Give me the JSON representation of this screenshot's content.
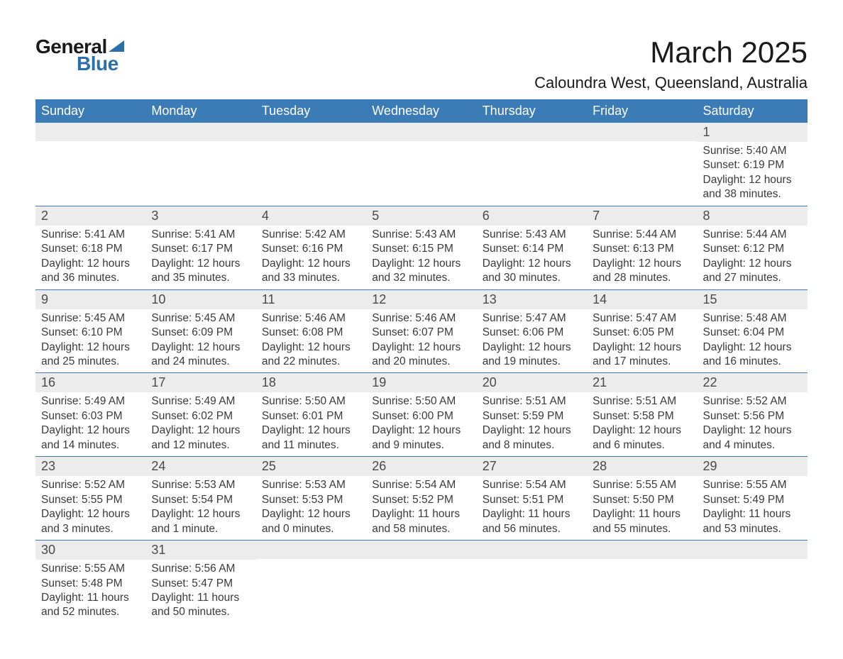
{
  "logo": {
    "general": "General",
    "blue": "Blue"
  },
  "title": "March 2025",
  "location": "Caloundra West, Queensland, Australia",
  "colors": {
    "header_bg": "#3c7cb6",
    "header_text": "#ffffff",
    "daynum_bg": "#ececec",
    "text": "#3a3a3a",
    "logo_blue": "#2a6faa"
  },
  "day_headers": [
    "Sunday",
    "Monday",
    "Tuesday",
    "Wednesday",
    "Thursday",
    "Friday",
    "Saturday"
  ],
  "weeks": [
    [
      {
        "num": "",
        "sunrise": "",
        "sunset": "",
        "daylight": ""
      },
      {
        "num": "",
        "sunrise": "",
        "sunset": "",
        "daylight": ""
      },
      {
        "num": "",
        "sunrise": "",
        "sunset": "",
        "daylight": ""
      },
      {
        "num": "",
        "sunrise": "",
        "sunset": "",
        "daylight": ""
      },
      {
        "num": "",
        "sunrise": "",
        "sunset": "",
        "daylight": ""
      },
      {
        "num": "",
        "sunrise": "",
        "sunset": "",
        "daylight": ""
      },
      {
        "num": "1",
        "sunrise": "Sunrise: 5:40 AM",
        "sunset": "Sunset: 6:19 PM",
        "daylight": "Daylight: 12 hours and 38 minutes."
      }
    ],
    [
      {
        "num": "2",
        "sunrise": "Sunrise: 5:41 AM",
        "sunset": "Sunset: 6:18 PM",
        "daylight": "Daylight: 12 hours and 36 minutes."
      },
      {
        "num": "3",
        "sunrise": "Sunrise: 5:41 AM",
        "sunset": "Sunset: 6:17 PM",
        "daylight": "Daylight: 12 hours and 35 minutes."
      },
      {
        "num": "4",
        "sunrise": "Sunrise: 5:42 AM",
        "sunset": "Sunset: 6:16 PM",
        "daylight": "Daylight: 12 hours and 33 minutes."
      },
      {
        "num": "5",
        "sunrise": "Sunrise: 5:43 AM",
        "sunset": "Sunset: 6:15 PM",
        "daylight": "Daylight: 12 hours and 32 minutes."
      },
      {
        "num": "6",
        "sunrise": "Sunrise: 5:43 AM",
        "sunset": "Sunset: 6:14 PM",
        "daylight": "Daylight: 12 hours and 30 minutes."
      },
      {
        "num": "7",
        "sunrise": "Sunrise: 5:44 AM",
        "sunset": "Sunset: 6:13 PM",
        "daylight": "Daylight: 12 hours and 28 minutes."
      },
      {
        "num": "8",
        "sunrise": "Sunrise: 5:44 AM",
        "sunset": "Sunset: 6:12 PM",
        "daylight": "Daylight: 12 hours and 27 minutes."
      }
    ],
    [
      {
        "num": "9",
        "sunrise": "Sunrise: 5:45 AM",
        "sunset": "Sunset: 6:10 PM",
        "daylight": "Daylight: 12 hours and 25 minutes."
      },
      {
        "num": "10",
        "sunrise": "Sunrise: 5:45 AM",
        "sunset": "Sunset: 6:09 PM",
        "daylight": "Daylight: 12 hours and 24 minutes."
      },
      {
        "num": "11",
        "sunrise": "Sunrise: 5:46 AM",
        "sunset": "Sunset: 6:08 PM",
        "daylight": "Daylight: 12 hours and 22 minutes."
      },
      {
        "num": "12",
        "sunrise": "Sunrise: 5:46 AM",
        "sunset": "Sunset: 6:07 PM",
        "daylight": "Daylight: 12 hours and 20 minutes."
      },
      {
        "num": "13",
        "sunrise": "Sunrise: 5:47 AM",
        "sunset": "Sunset: 6:06 PM",
        "daylight": "Daylight: 12 hours and 19 minutes."
      },
      {
        "num": "14",
        "sunrise": "Sunrise: 5:47 AM",
        "sunset": "Sunset: 6:05 PM",
        "daylight": "Daylight: 12 hours and 17 minutes."
      },
      {
        "num": "15",
        "sunrise": "Sunrise: 5:48 AM",
        "sunset": "Sunset: 6:04 PM",
        "daylight": "Daylight: 12 hours and 16 minutes."
      }
    ],
    [
      {
        "num": "16",
        "sunrise": "Sunrise: 5:49 AM",
        "sunset": "Sunset: 6:03 PM",
        "daylight": "Daylight: 12 hours and 14 minutes."
      },
      {
        "num": "17",
        "sunrise": "Sunrise: 5:49 AM",
        "sunset": "Sunset: 6:02 PM",
        "daylight": "Daylight: 12 hours and 12 minutes."
      },
      {
        "num": "18",
        "sunrise": "Sunrise: 5:50 AM",
        "sunset": "Sunset: 6:01 PM",
        "daylight": "Daylight: 12 hours and 11 minutes."
      },
      {
        "num": "19",
        "sunrise": "Sunrise: 5:50 AM",
        "sunset": "Sunset: 6:00 PM",
        "daylight": "Daylight: 12 hours and 9 minutes."
      },
      {
        "num": "20",
        "sunrise": "Sunrise: 5:51 AM",
        "sunset": "Sunset: 5:59 PM",
        "daylight": "Daylight: 12 hours and 8 minutes."
      },
      {
        "num": "21",
        "sunrise": "Sunrise: 5:51 AM",
        "sunset": "Sunset: 5:58 PM",
        "daylight": "Daylight: 12 hours and 6 minutes."
      },
      {
        "num": "22",
        "sunrise": "Sunrise: 5:52 AM",
        "sunset": "Sunset: 5:56 PM",
        "daylight": "Daylight: 12 hours and 4 minutes."
      }
    ],
    [
      {
        "num": "23",
        "sunrise": "Sunrise: 5:52 AM",
        "sunset": "Sunset: 5:55 PM",
        "daylight": "Daylight: 12 hours and 3 minutes."
      },
      {
        "num": "24",
        "sunrise": "Sunrise: 5:53 AM",
        "sunset": "Sunset: 5:54 PM",
        "daylight": "Daylight: 12 hours and 1 minute."
      },
      {
        "num": "25",
        "sunrise": "Sunrise: 5:53 AM",
        "sunset": "Sunset: 5:53 PM",
        "daylight": "Daylight: 12 hours and 0 minutes."
      },
      {
        "num": "26",
        "sunrise": "Sunrise: 5:54 AM",
        "sunset": "Sunset: 5:52 PM",
        "daylight": "Daylight: 11 hours and 58 minutes."
      },
      {
        "num": "27",
        "sunrise": "Sunrise: 5:54 AM",
        "sunset": "Sunset: 5:51 PM",
        "daylight": "Daylight: 11 hours and 56 minutes."
      },
      {
        "num": "28",
        "sunrise": "Sunrise: 5:55 AM",
        "sunset": "Sunset: 5:50 PM",
        "daylight": "Daylight: 11 hours and 55 minutes."
      },
      {
        "num": "29",
        "sunrise": "Sunrise: 5:55 AM",
        "sunset": "Sunset: 5:49 PM",
        "daylight": "Daylight: 11 hours and 53 minutes."
      }
    ],
    [
      {
        "num": "30",
        "sunrise": "Sunrise: 5:55 AM",
        "sunset": "Sunset: 5:48 PM",
        "daylight": "Daylight: 11 hours and 52 minutes."
      },
      {
        "num": "31",
        "sunrise": "Sunrise: 5:56 AM",
        "sunset": "Sunset: 5:47 PM",
        "daylight": "Daylight: 11 hours and 50 minutes."
      },
      {
        "num": "",
        "sunrise": "",
        "sunset": "",
        "daylight": ""
      },
      {
        "num": "",
        "sunrise": "",
        "sunset": "",
        "daylight": ""
      },
      {
        "num": "",
        "sunrise": "",
        "sunset": "",
        "daylight": ""
      },
      {
        "num": "",
        "sunrise": "",
        "sunset": "",
        "daylight": ""
      },
      {
        "num": "",
        "sunrise": "",
        "sunset": "",
        "daylight": ""
      }
    ]
  ]
}
